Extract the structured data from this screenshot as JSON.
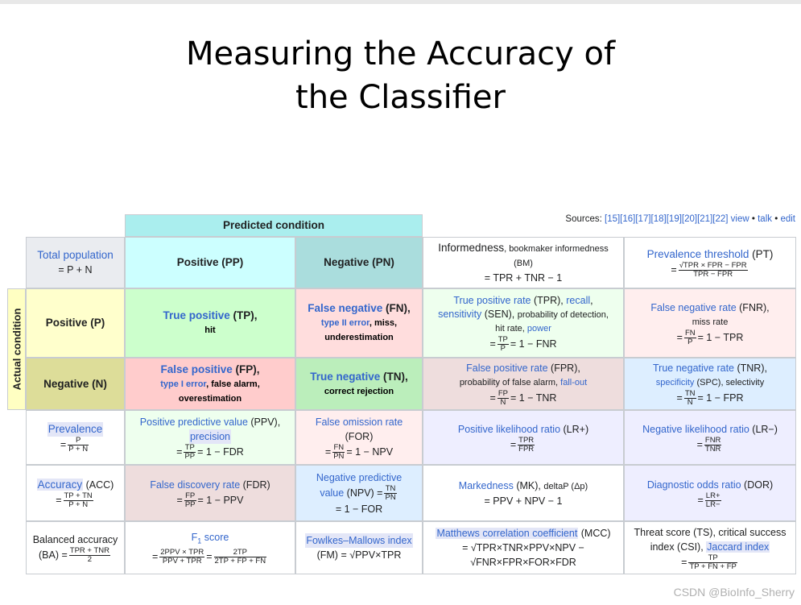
{
  "slide": {
    "title_line1": "Measuring the Accuracy of",
    "title_line2": "the Classifier"
  },
  "table": {
    "predicted_condition": "Predicted condition",
    "actual_condition": "Actual condition",
    "sources_label": "Sources: ",
    "sources_refs": "[15][16][17][18][19][20][21][22]",
    "view": "view",
    "talk": "talk",
    "edit": "edit",
    "bullet": "•",
    "total_population": {
      "name": "Total population",
      "formula": "= P + N"
    },
    "positive_pp": "Positive (PP)",
    "negative_pn": "Negative (PN)",
    "informedness": {
      "name": "Informedness",
      "alt": ", bookmaker informedness",
      "abbr": "(BM)",
      "formula": "= TPR + TNR − 1"
    },
    "prevalence_threshold": {
      "name": "Prevalence threshold",
      "abbr": " (PT)",
      "eq": "=",
      "num": "√TPR × FPR − FPR",
      "den": "TPR − FPR"
    },
    "positive_p": "Positive (P)",
    "negative_n": "Negative (N)",
    "tp": {
      "name": "True positive",
      "abbr": " (TP),",
      "alt": "hit"
    },
    "fn": {
      "name": "False negative",
      "abbr": " (FN),",
      "alt1": "type II error",
      "alt2": ", miss,",
      "alt3": "underestimation"
    },
    "tpr": {
      "name": "True positive rate",
      "abbr": " (TPR), ",
      "recall": "recall",
      "comma": ",",
      "sensitivity": "sensitivity",
      "sen": " (SEN), ",
      "pod": "probability of detection,",
      "hit": "hit rate, ",
      "power": "power",
      "eq": "=",
      "num": "TP",
      "den": "P",
      "rest": "= 1 − FNR"
    },
    "fnr": {
      "name": "False negative rate",
      "abbr": " (FNR),",
      "alt": "miss rate",
      "eq": "=",
      "num": "FN",
      "den": "P",
      "rest": "= 1 − TPR"
    },
    "fp": {
      "name": "False positive",
      "abbr": " (FP),",
      "alt1": "type I error",
      "alt2": ", false alarm,",
      "alt3": "overestimation"
    },
    "tn": {
      "name": "True negative",
      "abbr": " (TN),",
      "alt": "correct rejection"
    },
    "fpr": {
      "name": "False positive rate",
      "abbr": " (FPR),",
      "alt": "probability of false alarm, ",
      "fallout": "fall-out",
      "eq": "=",
      "num": "FP",
      "den": "N",
      "rest": "= 1 − TNR"
    },
    "tnr": {
      "name": "True negative rate",
      "abbr": " (TNR),",
      "specificity": "specificity",
      "alt": " (SPC), selectivity",
      "eq": "=",
      "num": "TN",
      "den": "N",
      "rest": "= 1 − FPR"
    },
    "prevalence": {
      "name": "Prevalence",
      "eq": "=",
      "num": "P",
      "den": "P + N"
    },
    "ppv": {
      "name": "Positive predictive value",
      "abbr": " (PPV),",
      "precision": "precision",
      "eq": "=",
      "num": "TP",
      "den": "PP",
      "rest": "= 1 − FDR"
    },
    "for": {
      "name": "False omission rate",
      "abbr": "(FOR)",
      "eq": "=",
      "num": "FN",
      "den": "PN",
      "rest": "= 1 − NPV"
    },
    "lrp": {
      "name": "Positive likelihood ratio",
      "abbr": " (LR+)",
      "eq": "=",
      "num": "TPR",
      "den": "FPR"
    },
    "lrn": {
      "name": "Negative likelihood ratio",
      "abbr": " (LR−)",
      "eq": "=",
      "num": "FNR",
      "den": "TNR"
    },
    "acc": {
      "name": "Accuracy",
      "abbr": " (ACC)",
      "eq": "=",
      "num": "TP + TN",
      "den": "P + N"
    },
    "fdr": {
      "name": "False discovery rate",
      "abbr": " (FDR)",
      "eq": "=",
      "num": "FP",
      "den": "PP",
      "rest": "= 1 − PPV"
    },
    "npv": {
      "name1": "Negative predictive",
      "name2": "value",
      "abbr": " (NPV) =",
      "num": "TN",
      "den": "PN",
      "rest": "= 1 − FOR"
    },
    "mk": {
      "name": "Markedness",
      "abbr": " (MK), ",
      "alt": "deltaP (Δp)",
      "formula": "= PPV + NPV − 1"
    },
    "dor": {
      "name": "Diagnostic odds ratio",
      "abbr": " (DOR)",
      "eq": "=",
      "num": "LR+",
      "den": "LR−"
    },
    "ba": {
      "name": "Balanced accuracy",
      "abbr": "(BA) =",
      "num": "TPR + TNR",
      "den": "2"
    },
    "f1": {
      "name": "F",
      "sub": "1",
      "rest": " score",
      "eq": "=",
      "num1": "2PPV × TPR",
      "den1": "PPV + TPR",
      "eq2": "=",
      "num2": "2TP",
      "den2": "2TP + FP + FN"
    },
    "fm": {
      "name": "Fowlkes–Mallows index",
      "formula": "(FM) = √PPV×TPR"
    },
    "mcc": {
      "name": "Matthews correlation coefficient",
      "abbr": " (MCC)",
      "line2": "= √TPR×TNR×PPV×NPV −",
      "line3": "√FNR×FPR×FOR×FDR"
    },
    "ts": {
      "line1": "Threat score (TS), critical success",
      "line2a": "index (CSI), ",
      "jaccard": "Jaccard index",
      "eq": "=",
      "num": "TP",
      "den": "TP + FN + FP"
    }
  },
  "watermark": "CSDN @BioInfo_Sherry",
  "colors": {
    "header_teal": "#aaeeee",
    "positive_pp": "#ccffff",
    "negative_pn": "#aadddd",
    "actual_yellow": "#ffffcc",
    "negative_n_olive": "#dddd99",
    "tp_green": "#ccffcc",
    "fn_red": "#ffdddd",
    "fp_red": "#ffcccc",
    "tn_green": "#bbeebb",
    "tpr_lightgreen": "#eeffee",
    "fpr_rose": "#eedddd",
    "fnr_pink": "#ffeeee",
    "tnr_lightblue": "#ddeeff",
    "lr_lavender": "#eeeeff",
    "link_blue": "#3366cc"
  }
}
